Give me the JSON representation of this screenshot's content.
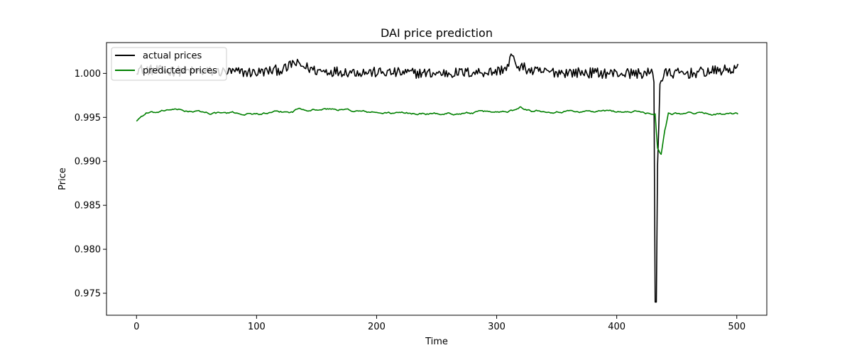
{
  "chart_data": {
    "type": "line",
    "title": "DAI price prediction",
    "xlabel": "Time",
    "ylabel": "Price",
    "xlim": [
      -25,
      525
    ],
    "ylim": [
      0.9725,
      1.0035
    ],
    "xticks": [
      0,
      100,
      200,
      300,
      400,
      500
    ],
    "yticks": [
      0.975,
      0.98,
      0.985,
      0.99,
      0.995,
      1.0
    ],
    "ytick_labels": [
      "0.975",
      "0.980",
      "0.985",
      "0.990",
      "0.995",
      "1.000"
    ],
    "grid": false,
    "legend": "upper-left",
    "series": [
      {
        "name": "actual prices",
        "color": "#000000",
        "anchors": [
          [
            0,
            1.0005
          ],
          [
            20,
            1.0003
          ],
          [
            60,
            1.0002
          ],
          [
            100,
            1.0001
          ],
          [
            125,
            1.0005
          ],
          [
            130,
            1.0012
          ],
          [
            150,
            1.0003
          ],
          [
            200,
            1.0001
          ],
          [
            250,
            1.0
          ],
          [
            300,
            1.0002
          ],
          [
            310,
            1.0008
          ],
          [
            312,
            1.0022
          ],
          [
            316,
            1.001
          ],
          [
            330,
            1.0002
          ],
          [
            400,
            1.0
          ],
          [
            430,
            1.0
          ],
          [
            431,
            0.999
          ],
          [
            432,
            0.974
          ],
          [
            433,
            0.974
          ],
          [
            434,
            0.9895
          ],
          [
            436,
            0.9988
          ],
          [
            440,
            1.0
          ],
          [
            460,
            1.0
          ],
          [
            501,
            1.0005
          ]
        ],
        "noise_amp": 0.0006,
        "n_points": 502
      },
      {
        "name": "predicted prices",
        "color": "#008000",
        "anchors": [
          [
            0,
            0.9946
          ],
          [
            3,
            0.995
          ],
          [
            8,
            0.9955
          ],
          [
            20,
            0.9955
          ],
          [
            28,
            0.9959
          ],
          [
            60,
            0.9955
          ],
          [
            100,
            0.9954
          ],
          [
            130,
            0.9956
          ],
          [
            135,
            0.996
          ],
          [
            170,
            0.9959
          ],
          [
            200,
            0.9955
          ],
          [
            250,
            0.9954
          ],
          [
            300,
            0.9956
          ],
          [
            314,
            0.9958
          ],
          [
            320,
            0.9963
          ],
          [
            330,
            0.9958
          ],
          [
            380,
            0.9957
          ],
          [
            420,
            0.9956
          ],
          [
            432,
            0.9954
          ],
          [
            434,
            0.9915
          ],
          [
            437,
            0.9908
          ],
          [
            440,
            0.9935
          ],
          [
            443,
            0.9955
          ],
          [
            470,
            0.9955
          ],
          [
            501,
            0.9953
          ]
        ],
        "noise_amp": 0.0002,
        "n_points": 502
      }
    ]
  }
}
